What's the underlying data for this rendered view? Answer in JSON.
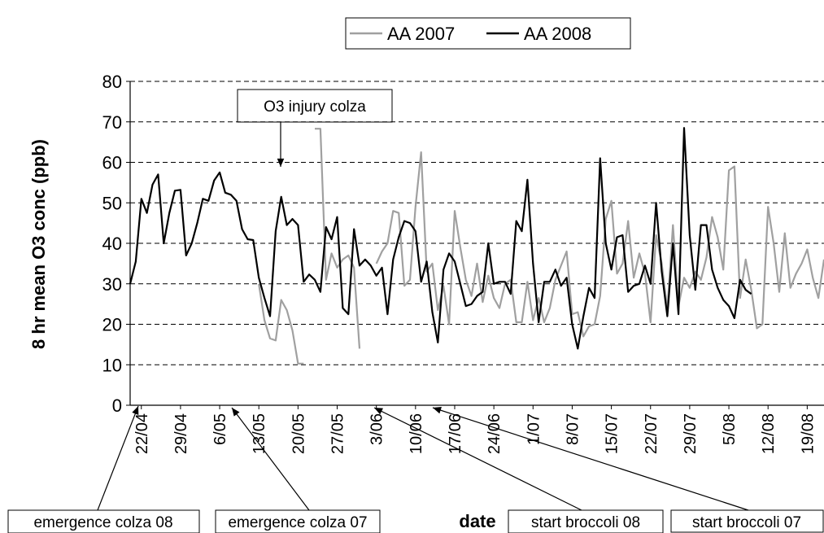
{
  "chart_data": {
    "type": "line",
    "legend": "top",
    "y_label": "8 hr mean O3 conc (ppb)",
    "x_label": "date",
    "annotations": [
      "O3 injury colza",
      "emergence colza 08",
      "emergence colza 07",
      "start broccoli 08",
      "start broccoli 07"
    ],
    "ylim": [
      0,
      80
    ],
    "yticks": [
      0,
      10,
      20,
      30,
      40,
      50,
      60,
      70,
      80
    ],
    "grid": true,
    "categories": [
      null,
      null,
      "22/04",
      null,
      null,
      null,
      null,
      null,
      null,
      "29/04",
      null,
      null,
      null,
      null,
      null,
      null,
      "6/05",
      null,
      null,
      null,
      null,
      null,
      null,
      "13/05",
      null,
      null,
      null,
      null,
      null,
      null,
      "20/05",
      null,
      null,
      null,
      null,
      null,
      null,
      "27/05",
      null,
      null,
      null,
      null,
      null,
      null,
      "3/06",
      null,
      null,
      null,
      null,
      null,
      null,
      "10/06",
      null,
      null,
      null,
      null,
      null,
      null,
      "17/06",
      null,
      null,
      null,
      null,
      null,
      null,
      "24/06",
      null,
      null,
      null,
      null,
      null,
      null,
      "1/07",
      null,
      null,
      null,
      null,
      null,
      null,
      "8/07",
      null,
      null,
      null,
      null,
      null,
      null,
      "15/07",
      null,
      null,
      null,
      null,
      null,
      null,
      "22/07",
      null,
      null,
      null,
      null,
      null,
      null,
      "29/07",
      null,
      null,
      null,
      null,
      null,
      null,
      "5/08",
      null,
      null,
      null,
      null,
      null,
      null,
      "12/08",
      null,
      null,
      null,
      null,
      null,
      null,
      "19/08",
      null,
      null,
      null
    ],
    "series": [
      {
        "name": "AA 2007",
        "color": "#a0a0a0",
        "values": [
          null,
          null,
          null,
          null,
          null,
          null,
          null,
          null,
          null,
          null,
          null,
          null,
          null,
          null,
          null,
          null,
          null,
          null,
          null,
          null,
          null,
          null,
          null,
          30,
          21,
          16.5,
          16,
          26,
          23.5,
          18.5,
          10.3,
          10.3,
          null,
          68.3,
          68.3,
          31,
          37.5,
          34,
          36,
          37,
          34,
          14,
          null,
          null,
          35,
          38,
          40,
          48,
          47.5,
          29.5,
          31,
          49,
          62.5,
          33,
          35,
          23.5,
          29.5,
          20,
          48,
          39,
          31,
          27,
          35,
          25.5,
          32,
          26.5,
          24,
          30,
          31,
          20.5,
          20.5,
          30.5,
          21,
          26.5,
          20.5,
          24,
          31,
          34.5,
          38,
          22.5,
          23,
          17,
          19.5,
          20,
          27,
          46,
          50.5,
          32.5,
          35,
          45.5,
          31.5,
          37.5,
          32.5,
          20.5,
          42,
          35,
          23.5,
          44.5,
          24.5,
          31.5,
          29,
          33,
          31,
          36.5,
          46.5,
          41.5,
          33.5,
          58,
          59,
          26.5,
          36,
          28.5,
          19,
          20,
          49,
          40,
          28,
          42.5,
          29,
          32.5,
          35,
          38.5,
          31.5,
          26.5,
          36
        ]
      },
      {
        "name": "AA 2008",
        "color": "#000000",
        "values": [
          30,
          35.5,
          51,
          47.5,
          54.5,
          57,
          40,
          47.5,
          53,
          53.2,
          37,
          40,
          45,
          51,
          50.5,
          55.5,
          57.5,
          52.5,
          52,
          50.5,
          43.5,
          41,
          40.8,
          31.5,
          26.5,
          22,
          43,
          51.5,
          44.5,
          46,
          44.5,
          30.5,
          32.3,
          31,
          28,
          44,
          41,
          46.5,
          24,
          22.5,
          43.5,
          34.5,
          36,
          34.5,
          32,
          34,
          22.5,
          36,
          41.5,
          45.5,
          45,
          43,
          30.5,
          35.5,
          23,
          15.5,
          33.5,
          37.5,
          35.5,
          30,
          24.5,
          25,
          27,
          28,
          40,
          30,
          30.5,
          30.5,
          27.5,
          45.5,
          43,
          55.7,
          35,
          20.5,
          30.5,
          30.5,
          33.5,
          29.5,
          31.5,
          20,
          14,
          22,
          29,
          26.5,
          61,
          40,
          33.5,
          41.5,
          42,
          28,
          29.5,
          30,
          34.5,
          30,
          50,
          33,
          22,
          40,
          22.5,
          68.5,
          42,
          28.5,
          44.5,
          44.5,
          33.5,
          29,
          26,
          24.5,
          21.5,
          31,
          28.5,
          27.5,
          null,
          null,
          null,
          null,
          null,
          null,
          null,
          null,
          null,
          null,
          null,
          null,
          null
        ]
      }
    ]
  }
}
